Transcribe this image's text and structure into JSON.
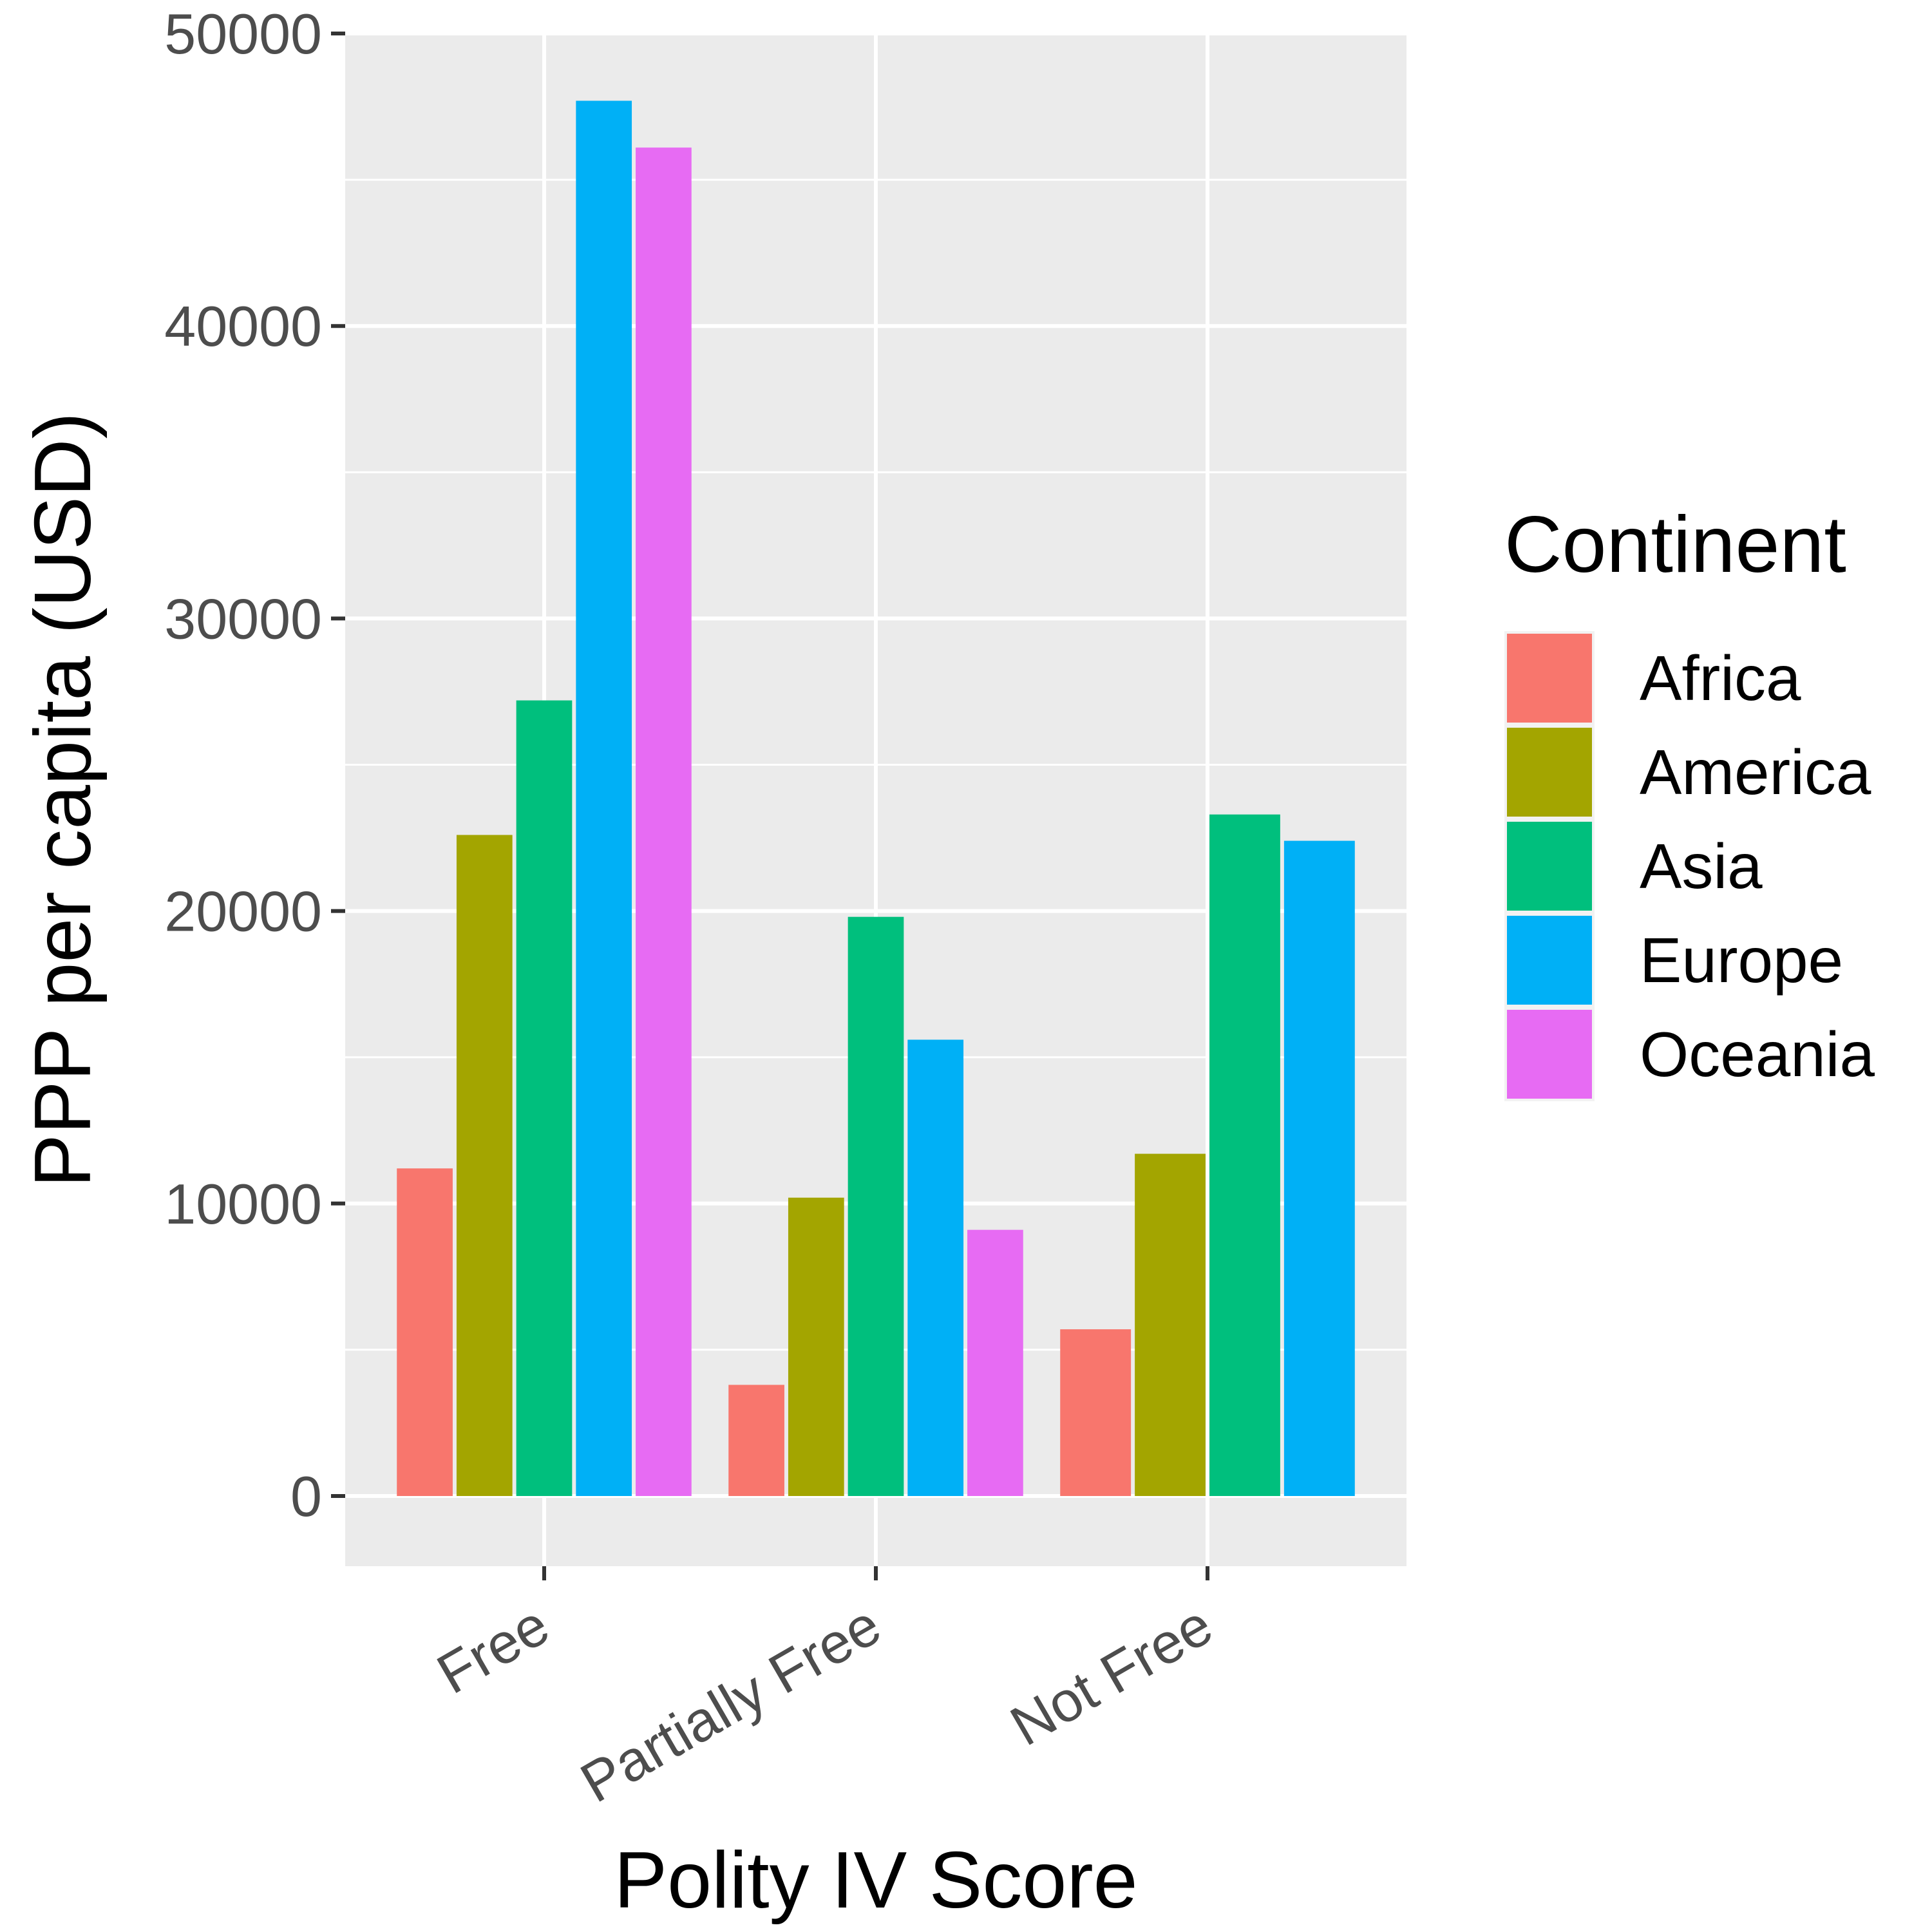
{
  "chart_data": {
    "type": "bar",
    "title": "",
    "xlabel": "Polity IV Score",
    "ylabel": "PPP per capita (USD)",
    "ylim": [
      -2400,
      50000
    ],
    "yticks": [
      0,
      10000,
      20000,
      30000,
      40000,
      50000
    ],
    "grid": true,
    "legend": {
      "title": "Continent",
      "position": "right"
    },
    "categories": [
      "Free",
      "Partially Free",
      "Not Free"
    ],
    "series": [
      {
        "name": "Africa",
        "color": "#F8766D",
        "values": [
          11200,
          3800,
          5700
        ]
      },
      {
        "name": "America",
        "color": "#A3A500",
        "values": [
          22600,
          10200,
          11700
        ]
      },
      {
        "name": "Asia",
        "color": "#00BF7D",
        "values": [
          27200,
          19800,
          23300
        ]
      },
      {
        "name": "Europe",
        "color": "#00B0F6",
        "values": [
          47700,
          15600,
          22400
        ]
      },
      {
        "name": "Oceania",
        "color": "#E76BF3",
        "values": [
          46100,
          9100,
          null
        ]
      }
    ]
  }
}
